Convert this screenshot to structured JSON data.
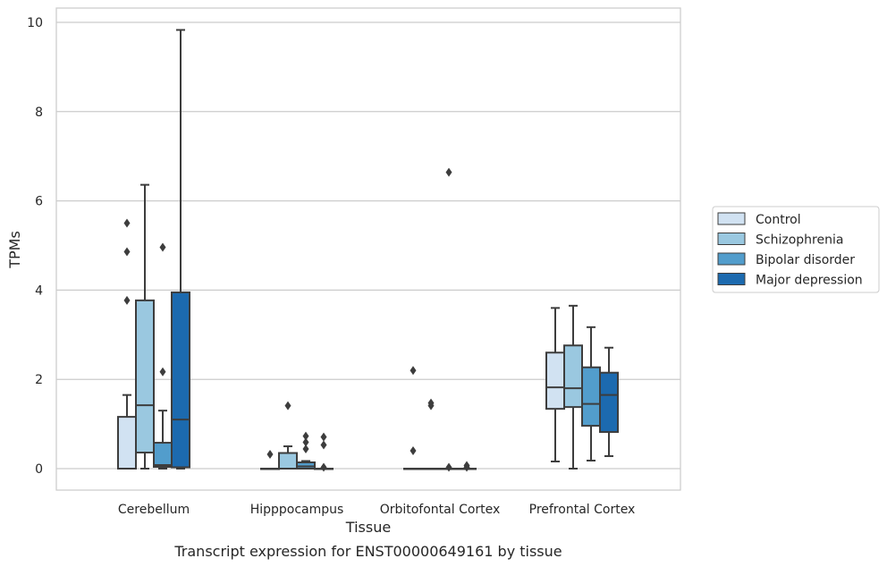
{
  "chart_data": {
    "type": "boxplot",
    "title": "",
    "caption": "Transcript expression for ENST00000649161 by tissue",
    "xlabel": "Tissue",
    "ylabel": "TPMs",
    "ylim": [
      -0.45,
      10.3
    ],
    "yticks": [
      0,
      2,
      4,
      6,
      8,
      10
    ],
    "grid": "horizontal",
    "legend_position": "right",
    "categories": [
      "Cerebellum",
      "Hipppocampus",
      "Orbitofontal Cortex",
      "Prefrontal Cortex"
    ],
    "series": [
      {
        "name": "Control",
        "color": "#d1e2f2",
        "boxes": [
          {
            "whislo": 0,
            "q1": 0,
            "median": 0,
            "q3": 1.16,
            "whishi": 1.65,
            "fliers": [
              3.77,
              4.86,
              5.5
            ]
          },
          {
            "whislo": 0,
            "q1": 0,
            "median": 0,
            "q3": 0,
            "whishi": 0,
            "fliers": [
              0.32
            ]
          },
          {
            "whislo": 0,
            "q1": 0,
            "median": 0,
            "q3": 0,
            "whishi": 0,
            "fliers": [
              0.4,
              2.2
            ]
          },
          {
            "whislo": 0.16,
            "q1": 1.34,
            "median": 1.82,
            "q3": 2.6,
            "whishi": 3.6,
            "fliers": []
          }
        ]
      },
      {
        "name": "Schizophrenia",
        "color": "#9ac8e0",
        "boxes": [
          {
            "whislo": 0,
            "q1": 0.36,
            "median": 1.42,
            "q3": 3.77,
            "whishi": 6.36,
            "fliers": []
          },
          {
            "whislo": 0,
            "q1": 0,
            "median": 0,
            "q3": 0.35,
            "whishi": 0.5,
            "fliers": [
              1.41
            ]
          },
          {
            "whislo": 0,
            "q1": 0,
            "median": 0,
            "q3": 0,
            "whishi": 0,
            "fliers": [
              1.41,
              1.47
            ]
          },
          {
            "whislo": 0,
            "q1": 1.38,
            "median": 1.8,
            "q3": 2.76,
            "whishi": 3.65,
            "fliers": []
          }
        ]
      },
      {
        "name": "Bipolar disorder",
        "color": "#529dcc",
        "boxes": [
          {
            "whislo": 0,
            "q1": 0.04,
            "median": 0.08,
            "q3": 0.58,
            "whishi": 1.3,
            "fliers": [
              2.17,
              4.96
            ]
          },
          {
            "whislo": 0,
            "q1": 0,
            "median": 0.05,
            "q3": 0.14,
            "whishi": 0.17,
            "fliers": [
              0.44,
              0.59,
              0.73
            ]
          },
          {
            "whislo": 0,
            "q1": 0,
            "median": 0,
            "q3": 0,
            "whishi": 0,
            "fliers": [
              0.03,
              6.64
            ]
          },
          {
            "whislo": 0.18,
            "q1": 0.96,
            "median": 1.45,
            "q3": 2.27,
            "whishi": 3.17,
            "fliers": []
          }
        ]
      },
      {
        "name": "Major depression",
        "color": "#1c6aaf",
        "boxes": [
          {
            "whislo": 0,
            "q1": 0.03,
            "median": 1.1,
            "q3": 3.95,
            "whishi": 9.83,
            "fliers": []
          },
          {
            "whislo": 0,
            "q1": 0,
            "median": 0,
            "q3": 0,
            "whishi": 0,
            "fliers": [
              0.03,
              0.53,
              0.71
            ]
          },
          {
            "whislo": 0,
            "q1": 0,
            "median": 0,
            "q3": 0,
            "whishi": 0,
            "fliers": [
              0.03,
              0.07
            ]
          },
          {
            "whislo": 0.28,
            "q1": 0.82,
            "median": 1.65,
            "q3": 2.15,
            "whishi": 2.71,
            "fliers": []
          }
        ]
      }
    ]
  }
}
